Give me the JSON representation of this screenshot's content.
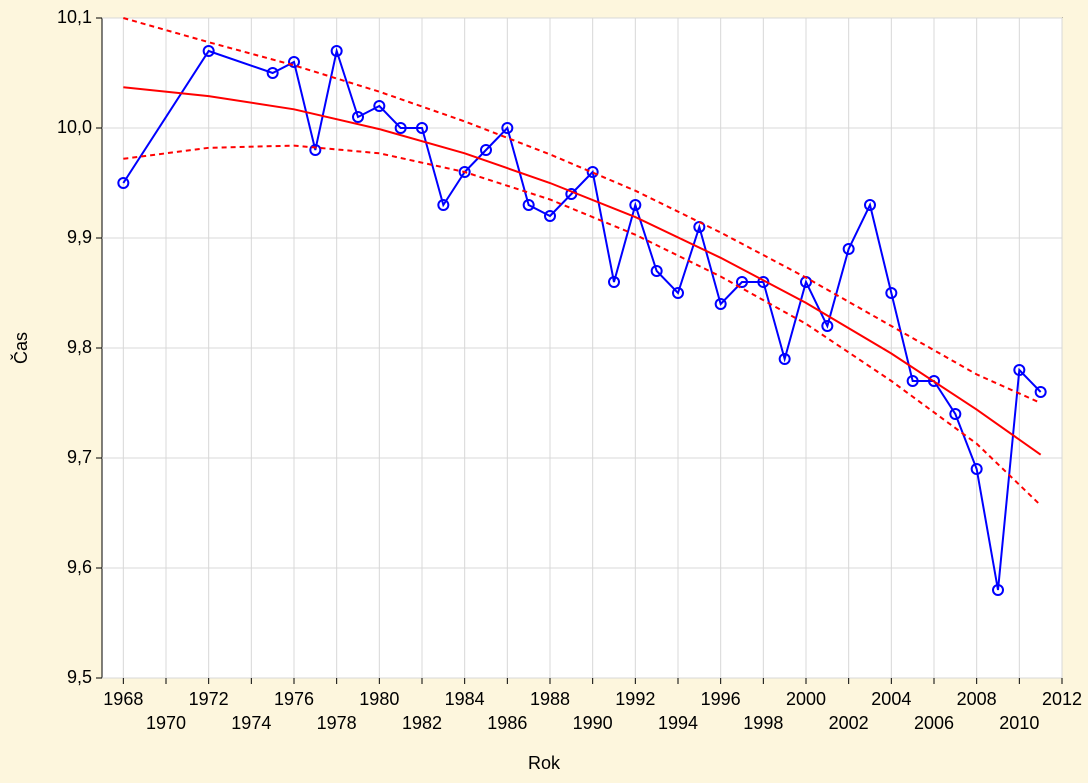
{
  "chart_data": {
    "type": "line",
    "xlabel": "Rok",
    "ylabel": "Čas",
    "xlim": [
      1967,
      2012
    ],
    "xticks": [
      1968,
      1970,
      1972,
      1974,
      1976,
      1978,
      1980,
      1982,
      1984,
      1986,
      1988,
      1990,
      1992,
      1994,
      1996,
      1998,
      2000,
      2002,
      2004,
      2006,
      2008,
      2010,
      2012
    ],
    "ylim": [
      9.5,
      10.1
    ],
    "yticks": [
      {
        "value": 9.5,
        "label": "9,5"
      },
      {
        "value": 9.6,
        "label": "9,6"
      },
      {
        "value": 9.7,
        "label": "9,7"
      },
      {
        "value": 9.8,
        "label": "9,8"
      },
      {
        "value": 9.9,
        "label": "9,9"
      },
      {
        "value": 10.0,
        "label": "10,0"
      },
      {
        "value": 10.1,
        "label": "10,1"
      }
    ],
    "grid": true,
    "series": [
      {
        "color": "#0000ff",
        "style": "solid",
        "markers": true,
        "x": [
          1968,
          1972,
          1975,
          1976,
          1977,
          1978,
          1979,
          1980,
          1981,
          1982,
          1983,
          1984,
          1985,
          1986,
          1987,
          1988,
          1989,
          1990,
          1991,
          1992,
          1993,
          1994,
          1995,
          1996,
          1997,
          1998,
          1999,
          2000,
          2001,
          2002,
          2003,
          2004,
          2005,
          2006,
          2007,
          2008,
          2009,
          2010,
          2011
        ],
        "values": [
          9.95,
          10.07,
          10.05,
          10.06,
          9.98,
          10.07,
          10.01,
          10.02,
          10.0,
          10.0,
          9.93,
          9.96,
          9.98,
          10.0,
          9.93,
          9.92,
          9.94,
          9.96,
          9.86,
          9.93,
          9.87,
          9.85,
          9.91,
          9.84,
          9.86,
          9.86,
          9.79,
          9.86,
          9.82,
          9.89,
          9.93,
          9.85,
          9.77,
          9.77,
          9.74,
          9.69,
          9.58,
          9.78,
          9.76
        ]
      },
      {
        "color": "#ff0000",
        "style": "solid",
        "markers": false,
        "x": [
          1968,
          1972,
          1976,
          1980,
          1984,
          1988,
          1992,
          1996,
          2000,
          2004,
          2008,
          2011
        ],
        "values": [
          10.037,
          10.029,
          10.017,
          9.999,
          9.977,
          9.95,
          9.919,
          9.882,
          9.841,
          9.795,
          9.744,
          9.703
        ]
      },
      {
        "color": "#ff0000",
        "style": "dashed",
        "markers": false,
        "x": [
          1968,
          1972,
          1976,
          1980,
          1984,
          1988,
          1992,
          1996,
          2000,
          2004,
          2008,
          2011
        ],
        "values": [
          10.1,
          10.078,
          10.057,
          10.033,
          10.006,
          9.976,
          9.943,
          9.905,
          9.864,
          9.82,
          9.776,
          9.75
        ]
      },
      {
        "color": "#ff0000",
        "style": "dashed",
        "markers": false,
        "x": [
          1968,
          1972,
          1976,
          1980,
          1984,
          1988,
          1992,
          1996,
          2000,
          2004,
          2008,
          2011
        ],
        "values": [
          9.972,
          9.982,
          9.984,
          9.977,
          9.96,
          9.935,
          9.903,
          9.865,
          9.822,
          9.77,
          9.713,
          9.657
        ]
      }
    ]
  }
}
